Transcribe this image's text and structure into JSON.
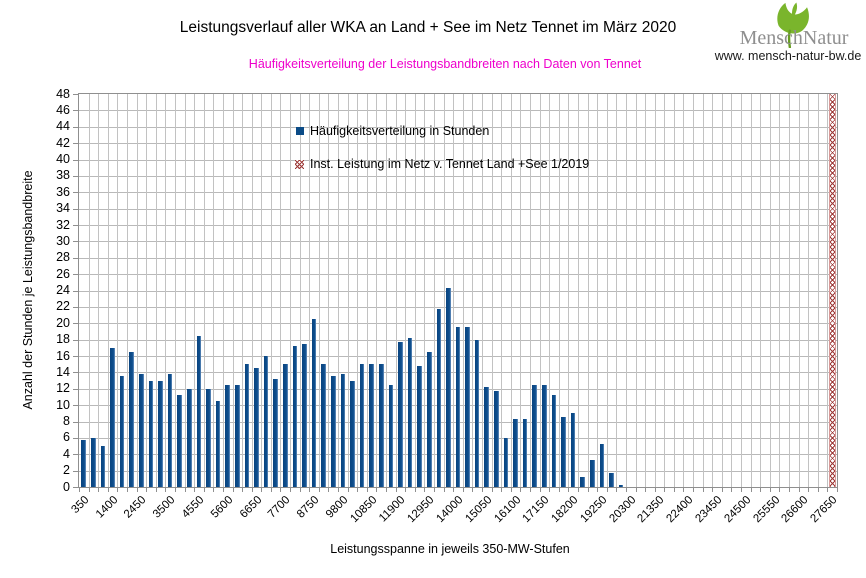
{
  "header": {
    "title": "Leistungsverlauf aller WKA an Land + See im Netz Tennet im März 2020",
    "subtitle": "Häufigkeitsverteilung der Leistungsbandbreiten nach Daten von Tennet",
    "subtitle_color": "#ee00cc"
  },
  "logo": {
    "name": "MenschNatur",
    "url": "www. mensch-natur-bw.de",
    "leaf_icon": "ginkgo-leaf",
    "leaf_color": "#7ab52c",
    "name_color": "#8f8f8f"
  },
  "chart_data": {
    "type": "bar",
    "title": "Leistungsverlauf aller WKA an Land + See im Netz Tennet im März 2020",
    "subtitle": "Häufigkeitsverteilung der Leistungsbandbreiten nach Daten von Tennet",
    "xlabel": "Leistungsspanne in jeweils 350-MW-Stufen",
    "ylabel": "Anzahl der Stunden je Leistungsbandbreite",
    "ylim": [
      0,
      48
    ],
    "ytick_step": 2,
    "ytick_labels": [
      "48",
      "46",
      "44",
      "42",
      "40",
      "38",
      "36",
      "34",
      "32",
      "30",
      "28",
      "26",
      "24",
      "22",
      "20",
      "18",
      "16",
      "14",
      "12",
      "10",
      "8",
      "6",
      "4",
      "2",
      "0"
    ],
    "grid": true,
    "category_start": 350,
    "category_step": 350,
    "categories_count": 79,
    "xtick_label_every": 3,
    "xtick_labels": [
      "350",
      "1400",
      "2450",
      "3500",
      "4550",
      "5600",
      "6650",
      "7700",
      "8750",
      "9800",
      "10850",
      "11900",
      "12950",
      "14000",
      "15050",
      "16100",
      "17150",
      "18200",
      "19250",
      "20300",
      "21350",
      "22400",
      "23450",
      "24500",
      "25550",
      "26600",
      "27650"
    ],
    "legend_position": "top-center-inside",
    "series": [
      {
        "name": "Häufigkeitsverteilung in Stunden",
        "marker": "square",
        "color": "#0b4b87",
        "values": [
          5.75,
          6,
          5,
          17,
          13.5,
          16.5,
          13.75,
          13,
          13,
          13.75,
          11.25,
          12,
          18.5,
          12,
          10.5,
          12.5,
          12.5,
          15,
          14.5,
          16,
          13.25,
          15,
          17.25,
          17.5,
          20.5,
          15,
          13.5,
          13.75,
          13,
          15,
          15,
          15,
          12.5,
          17.75,
          18.25,
          14.75,
          16.5,
          21.75,
          24.25,
          19.5,
          19.5,
          18,
          12.25,
          11.75,
          6,
          8.25,
          8.25,
          12.5,
          12.5,
          11.25,
          8.5,
          9,
          1.25,
          3.25,
          5.25,
          1.75,
          0.25,
          0,
          0,
          0,
          0,
          0,
          0,
          0,
          0,
          0,
          0,
          0,
          0,
          0,
          0,
          0,
          0,
          0,
          0,
          0,
          0,
          0,
          0
        ]
      },
      {
        "name": "Inst. Leistung im Netz v. Tennet  Land +See 1/2019",
        "marker": "hatched-square",
        "color": "#9e3a38",
        "x": 27650,
        "full_height": true,
        "note": "vertical hatched bar at 27650 spanning the whole y-range"
      }
    ]
  }
}
